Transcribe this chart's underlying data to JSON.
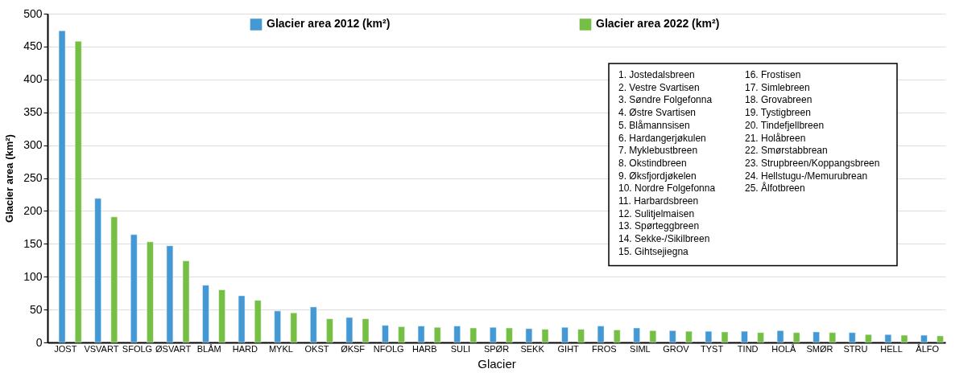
{
  "chart_data": {
    "type": "bar",
    "xlabel": "Glacier",
    "ylabel": "Glacier area (km²)",
    "categories": [
      "JOST",
      "VSVART",
      "SFOLG",
      "ØSVART",
      "BLÅM",
      "HARD",
      "MYKL",
      "OKST",
      "ØKSF",
      "NFOLG",
      "HARB",
      "SULI",
      "SPØR",
      "SEKK",
      "GIHT",
      "FROS",
      "SIML",
      "GROV",
      "TYST",
      "TIND",
      "HOLÅ",
      "SMØR",
      "STRU",
      "HELL",
      "ÅLFO"
    ],
    "series": [
      {
        "name": "Glacier area 2012 (km²)",
        "color": "#4499d5",
        "values": [
          474,
          219,
          164,
          147,
          87,
          71,
          48,
          54,
          38,
          26,
          25,
          25,
          23,
          21,
          23,
          25,
          22,
          18,
          17,
          17,
          18,
          16,
          15,
          12,
          11
        ]
      },
      {
        "name": "Glacier area 2022 (km²)",
        "color": "#74bf44",
        "values": [
          458,
          191,
          153,
          124,
          80,
          64,
          45,
          36,
          36,
          24,
          23,
          22,
          22,
          20,
          20,
          19,
          18,
          17,
          16,
          15,
          15,
          15,
          12,
          11,
          10
        ]
      }
    ],
    "ylim": [
      0,
      500
    ],
    "yticks": [
      0,
      50,
      100,
      150,
      200,
      250,
      300,
      350,
      400,
      450,
      500
    ],
    "grid": "y",
    "legend": "top",
    "annotations": [
      "1. Jostedalsbreen",
      "2. Vestre Svartisen",
      "3. Søndre Folgefonna",
      "4. Østre Svartisen",
      "5. Blåmannsisen",
      "6. Hardangerjøkulen",
      "7. Myklebustbreen",
      "8. Okstindbreen",
      "9. Øksfjordjøkelen",
      "10. Nordre Folgefonna",
      "11. Harbardsbreen",
      "12. Sulitjelmaisen",
      "13. Spørteggbreen",
      "14. Sekke-/Sikilbreen",
      "15. Gihtsejiegna",
      "16. Frostisen",
      "17. Simlebreen",
      "18. Grovabreen",
      "19. Tystigbreen",
      "20. Tindefjellbreen",
      "21. Holåbreen",
      "22. Smørstabbrean",
      "23. Strupbreen/Koppangsbreen",
      "24. Hellstugu-/Memurubrean",
      "25. Ålfotbreen"
    ]
  }
}
